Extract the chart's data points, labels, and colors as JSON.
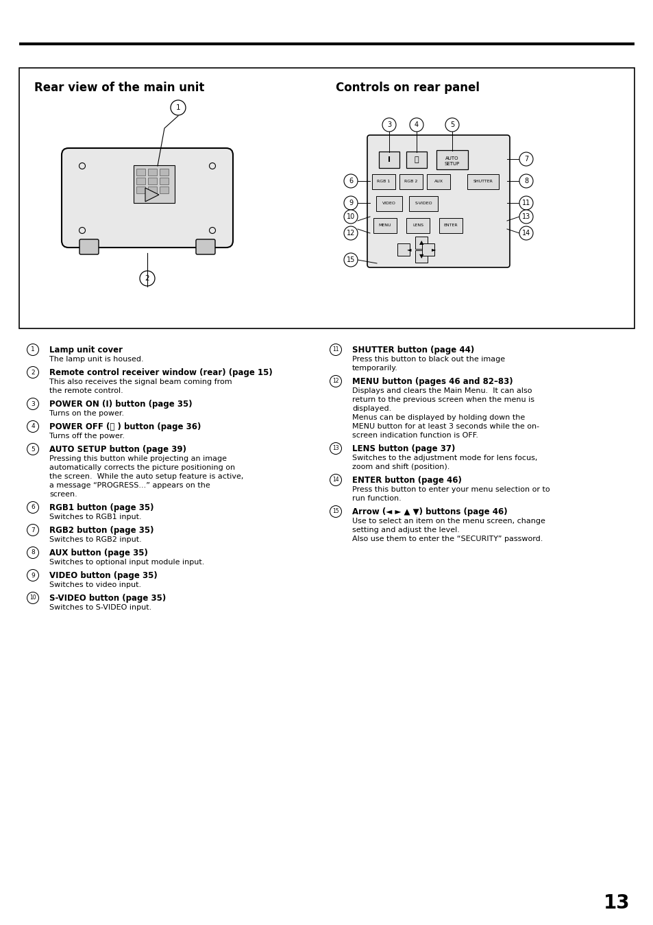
{
  "bg_color": "#ffffff",
  "page_number": "13",
  "left_title": "Rear view of the main unit",
  "right_title": "Controls on rear panel",
  "items_left": [
    {
      "num": "1",
      "bold": "Lamp unit cover",
      "normal": "The lamp unit is housed."
    },
    {
      "num": "2",
      "bold": "Remote control receiver window (rear) (page 15)",
      "normal": "This also receives the signal beam coming from\nthe remote control."
    },
    {
      "num": "3",
      "bold": "POWER ON (I) button (page 35)",
      "normal": "Turns on the power."
    },
    {
      "num": "4",
      "bold": "POWER OFF (⏻ ) button (page 36)",
      "normal": "Turns off the power."
    },
    {
      "num": "5",
      "bold": "AUTO SETUP button (page 39)",
      "normal": "Pressing this button while projecting an image\nautomatically corrects the picture positioning on\nthe screen.  While the auto setup feature is active,\na message “PROGRESS...” appears on the\nscreen."
    },
    {
      "num": "6",
      "bold": "RGB1 button (page 35)",
      "normal": "Switches to RGB1 input."
    },
    {
      "num": "7",
      "bold": "RGB2 button (page 35)",
      "normal": "Switches to RGB2 input."
    },
    {
      "num": "8",
      "bold": "AUX button (page 35)",
      "normal": "Switches to optional input module input."
    },
    {
      "num": "9",
      "bold": "VIDEO button (page 35)",
      "normal": "Switches to video input."
    },
    {
      "num": "10",
      "bold": "S-VIDEO button (page 35)",
      "normal": "Switches to S-VIDEO input."
    }
  ],
  "items_right": [
    {
      "num": "11",
      "bold": "SHUTTER button (page 44)",
      "normal": "Press this button to black out the image\ntemporarily."
    },
    {
      "num": "12",
      "bold": "MENU button (pages 46 and 82–83)",
      "normal": "Displays and clears the Main Menu.  It can also\nreturn to the previous screen when the menu is\ndisplayed.\nMenus can be displayed by holding down the\nMENU button for at least 3 seconds while the on-\nscreen indication function is OFF."
    },
    {
      "num": "13",
      "bold": "LENS button (page 37)",
      "normal": "Switches to the adjustment mode for lens focus,\nzoom and shift (position)."
    },
    {
      "num": "14",
      "bold": "ENTER button (page 46)",
      "normal": "Press this button to enter your menu selection or to\nrun function."
    },
    {
      "num": "15",
      "bold": "Arrow (◄ ► ▲ ▼) buttons (page 46)",
      "normal": "Use to select an item on the menu screen, change\nsetting and adjust the level.\nAlso use them to enter the “SECURITY” password."
    }
  ]
}
